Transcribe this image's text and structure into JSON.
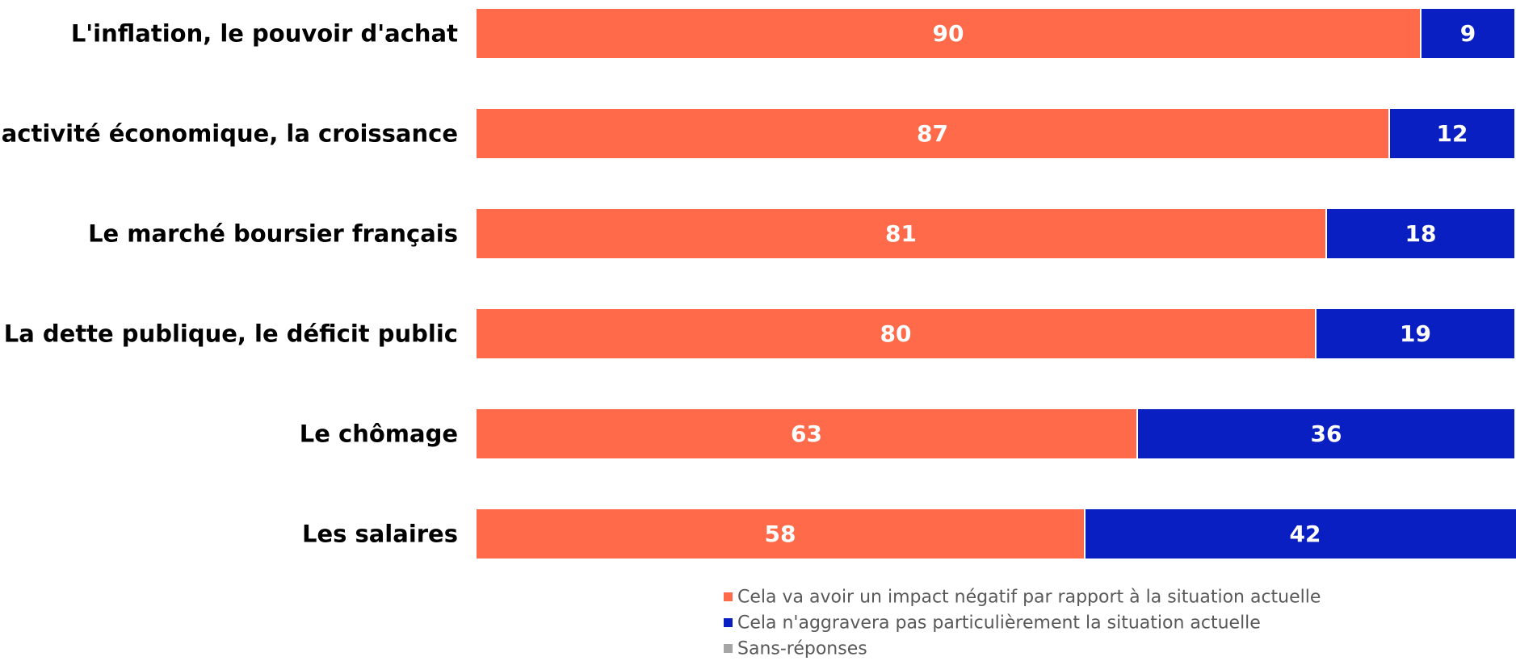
{
  "chart_data": {
    "type": "bar",
    "orientation": "horizontal",
    "stacked": true,
    "categories": [
      "L'inflation, le pouvoir d'achat",
      "L'activité économique, la croissance",
      "Le marché boursier français",
      "La dette publique, le déficit public",
      "Le chômage",
      "Les salaires"
    ],
    "series": [
      {
        "name": "Cela va avoir un impact négatif par rapport à la situation actuelle",
        "color": "#FF6B4A",
        "values": [
          90,
          87,
          81,
          80,
          63,
          58
        ]
      },
      {
        "name": "Cela n'aggravera pas particulièrement la situation actuelle",
        "color": "#0A1FC2",
        "values": [
          9,
          12,
          18,
          19,
          36,
          42
        ]
      },
      {
        "name": "Sans-réponses",
        "color": "#A6A6A6",
        "values": [
          1,
          1,
          1,
          1,
          1,
          0
        ]
      }
    ],
    "xlim": [
      0,
      100
    ],
    "grid": false,
    "legend_position": "bottom"
  }
}
